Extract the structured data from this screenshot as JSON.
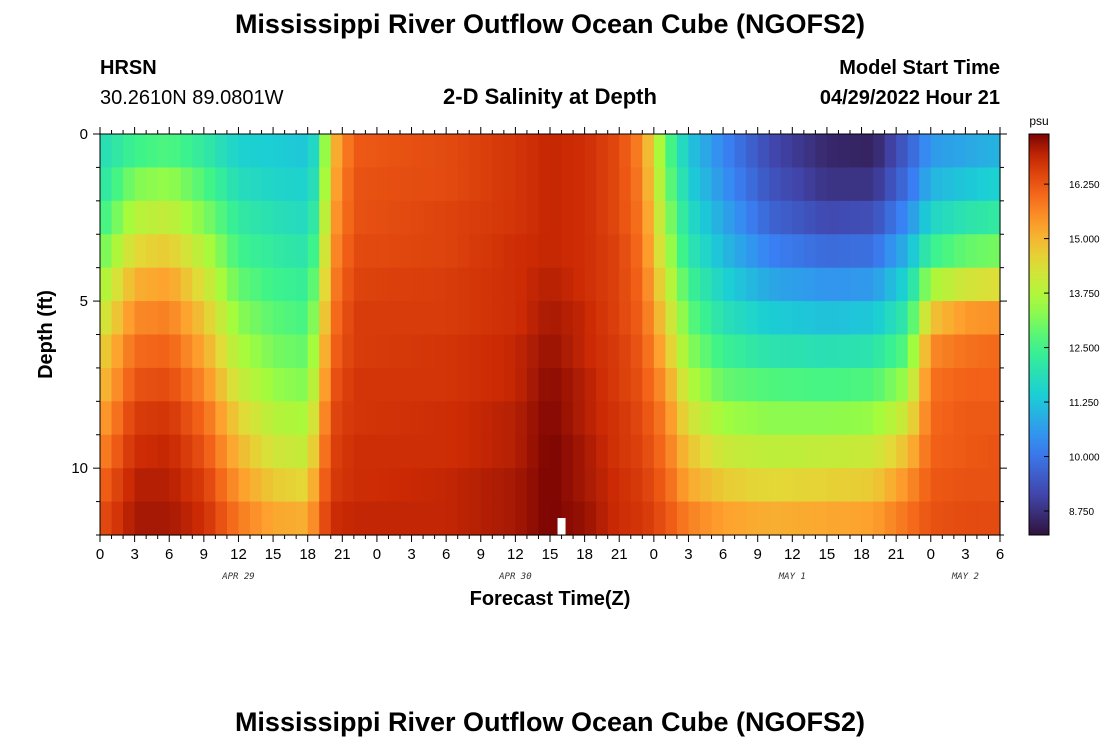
{
  "page": {
    "title": "Mississippi River Outflow Ocean Cube (NGOFS2)",
    "title_repeat": "Mississippi River Outflow Ocean Cube (NGOFS2)",
    "station_name": "HRSN",
    "station_coords": "30.2610N  89.0801W",
    "plot_subtitle": "2-D Salinity at Depth",
    "model_start_label": "Model Start Time",
    "model_start_value": "04/29/2022 Hour 21"
  },
  "chart_data": {
    "type": "heatmap",
    "title": "2-D Salinity at Depth",
    "xlabel": "Forecast Time(Z)",
    "ylabel": "Depth (ft)",
    "x_start_hour": 0,
    "x_end_hour": 78,
    "x_ticks": [
      {
        "hour": 0,
        "label": "0"
      },
      {
        "hour": 3,
        "label": "3"
      },
      {
        "hour": 6,
        "label": "6"
      },
      {
        "hour": 9,
        "label": "9"
      },
      {
        "hour": 12,
        "label": "12"
      },
      {
        "hour": 15,
        "label": "15"
      },
      {
        "hour": 18,
        "label": "18"
      },
      {
        "hour": 21,
        "label": "21"
      },
      {
        "hour": 24,
        "label": "0"
      },
      {
        "hour": 27,
        "label": "3"
      },
      {
        "hour": 30,
        "label": "6"
      },
      {
        "hour": 33,
        "label": "9"
      },
      {
        "hour": 36,
        "label": "12"
      },
      {
        "hour": 39,
        "label": "15"
      },
      {
        "hour": 42,
        "label": "18"
      },
      {
        "hour": 45,
        "label": "21"
      },
      {
        "hour": 48,
        "label": "0"
      },
      {
        "hour": 51,
        "label": "3"
      },
      {
        "hour": 54,
        "label": "6"
      },
      {
        "hour": 57,
        "label": "9"
      },
      {
        "hour": 60,
        "label": "12"
      },
      {
        "hour": 63,
        "label": "15"
      },
      {
        "hour": 66,
        "label": "18"
      },
      {
        "hour": 69,
        "label": "21"
      },
      {
        "hour": 72,
        "label": "0"
      },
      {
        "hour": 75,
        "label": "3"
      },
      {
        "hour": 78,
        "label": "6"
      }
    ],
    "day_labels": [
      {
        "hour": 12,
        "label": "APR 29"
      },
      {
        "hour": 36,
        "label": "APR 30"
      },
      {
        "hour": 60,
        "label": "MAY 1"
      },
      {
        "hour": 75,
        "label": "MAY 2"
      }
    ],
    "y_range": [
      0,
      12
    ],
    "y_ticks": [
      {
        "value": 0,
        "label": "0"
      },
      {
        "value": 5,
        "label": "5"
      },
      {
        "value": 10,
        "label": "10"
      }
    ],
    "depth_levels": 12,
    "colorbar": {
      "unit": "psu",
      "min": 8.2,
      "max": 17.4,
      "ticks": [
        {
          "value": 8.75,
          "label": "8.750"
        },
        {
          "value": 10.0,
          "label": "10.000"
        },
        {
          "value": 11.25,
          "label": "11.250"
        },
        {
          "value": 12.5,
          "label": "12.500"
        },
        {
          "value": 13.75,
          "label": "13.750"
        },
        {
          "value": 15.0,
          "label": "15.000"
        },
        {
          "value": 16.25,
          "label": "16.250"
        }
      ]
    },
    "profile_keyframes_note": "salinity (psu) per depth level from surface (level 0) to bottom (level 11) at selected forecast hours",
    "profile_keyframes": [
      {
        "hour": 0,
        "values": [
          11.8,
          12.0,
          12.4,
          12.9,
          13.5,
          14.0,
          14.5,
          14.8,
          15.2,
          15.6,
          16.0,
          16.3
        ]
      },
      {
        "hour": 3,
        "values": [
          12.5,
          13.2,
          13.8,
          14.5,
          15.1,
          15.6,
          16.0,
          16.3,
          16.6,
          16.8,
          17.0,
          17.1
        ]
      },
      {
        "hour": 6,
        "values": [
          12.7,
          13.4,
          14.0,
          14.7,
          15.3,
          15.7,
          16.1,
          16.4,
          16.7,
          16.9,
          17.0,
          17.1
        ]
      },
      {
        "hour": 9,
        "values": [
          12.2,
          12.7,
          13.2,
          13.8,
          14.3,
          14.8,
          15.2,
          15.6,
          16.0,
          16.3,
          16.6,
          16.8
        ]
      },
      {
        "hour": 12,
        "values": [
          11.5,
          11.8,
          12.2,
          12.5,
          12.9,
          13.3,
          13.7,
          14.1,
          14.6,
          15.0,
          15.4,
          15.8
        ]
      },
      {
        "hour": 15,
        "values": [
          11.4,
          11.6,
          11.9,
          12.2,
          12.5,
          12.8,
          13.1,
          13.4,
          13.8,
          14.2,
          14.7,
          15.2
        ]
      },
      {
        "hour": 18,
        "values": [
          11.3,
          11.5,
          11.7,
          12.0,
          12.3,
          12.6,
          12.9,
          13.2,
          13.6,
          14.0,
          14.5,
          15.1
        ]
      },
      {
        "hour": 19,
        "values": [
          12.0,
          12.2,
          12.6,
          13.0,
          13.4,
          13.8,
          14.2,
          14.5,
          14.9,
          15.3,
          15.7,
          16.0
        ]
      },
      {
        "hour": 20,
        "values": [
          14.8,
          15.0,
          15.2,
          15.4,
          15.6,
          15.8,
          16.0,
          16.2,
          16.4,
          16.5,
          16.6,
          16.8
        ]
      },
      {
        "hour": 22,
        "values": [
          16.2,
          16.3,
          16.3,
          16.4,
          16.5,
          16.6,
          16.6,
          16.7,
          16.7,
          16.8,
          16.8,
          16.9
        ]
      },
      {
        "hour": 30,
        "values": [
          16.4,
          16.4,
          16.5,
          16.5,
          16.6,
          16.6,
          16.7,
          16.7,
          16.8,
          16.8,
          16.9,
          16.9
        ]
      },
      {
        "hour": 36,
        "values": [
          16.7,
          16.7,
          16.7,
          16.8,
          16.8,
          16.8,
          16.9,
          16.9,
          17.0,
          17.0,
          17.1,
          17.1
        ]
      },
      {
        "hour": 39,
        "values": [
          16.9,
          16.9,
          16.9,
          16.9,
          17.0,
          17.1,
          17.2,
          17.3,
          17.35,
          17.4,
          17.4,
          17.4
        ]
      },
      {
        "hour": 42,
        "values": [
          16.8,
          16.8,
          16.8,
          16.8,
          16.8,
          16.9,
          16.9,
          17.0,
          17.0,
          17.1,
          17.1,
          17.2
        ]
      },
      {
        "hour": 45,
        "values": [
          16.4,
          16.4,
          16.4,
          16.5,
          16.5,
          16.5,
          16.6,
          16.6,
          16.7,
          16.7,
          16.8,
          16.8
        ]
      },
      {
        "hour": 47,
        "values": [
          15.6,
          15.7,
          15.8,
          15.9,
          16.0,
          16.1,
          16.2,
          16.3,
          16.4,
          16.5,
          16.6,
          16.7
        ]
      },
      {
        "hour": 49,
        "values": [
          13.0,
          13.2,
          13.5,
          13.8,
          14.2,
          14.6,
          15.0,
          15.4,
          15.7,
          15.9,
          16.1,
          16.3
        ]
      },
      {
        "hour": 51,
        "values": [
          11.3,
          11.5,
          11.8,
          12.1,
          12.5,
          12.9,
          13.3,
          13.8,
          14.3,
          14.8,
          15.2,
          15.7
        ]
      },
      {
        "hour": 54,
        "values": [
          10.3,
          10.5,
          10.8,
          11.1,
          11.5,
          11.9,
          12.4,
          12.9,
          13.5,
          14.1,
          14.7,
          15.3
        ]
      },
      {
        "hour": 58,
        "values": [
          9.2,
          9.4,
          9.7,
          10.2,
          10.8,
          11.4,
          12.0,
          12.7,
          13.3,
          13.9,
          14.5,
          15.1
        ]
      },
      {
        "hour": 63,
        "values": [
          8.6,
          8.8,
          9.2,
          9.8,
          10.5,
          11.2,
          11.9,
          12.6,
          13.3,
          14.0,
          14.6,
          15.2
        ]
      },
      {
        "hour": 67,
        "values": [
          8.5,
          8.8,
          9.3,
          9.9,
          10.6,
          11.3,
          12.0,
          12.7,
          13.4,
          14.1,
          14.7,
          15.3
        ]
      },
      {
        "hour": 70,
        "values": [
          9.6,
          9.9,
          10.4,
          11.0,
          11.6,
          12.2,
          12.8,
          13.5,
          14.2,
          14.9,
          15.5,
          15.9
        ]
      },
      {
        "hour": 72,
        "values": [
          10.6,
          11.0,
          11.6,
          12.4,
          13.6,
          14.8,
          15.6,
          15.9,
          16.0,
          16.1,
          16.2,
          16.3
        ]
      },
      {
        "hour": 75,
        "values": [
          10.8,
          11.3,
          12.0,
          12.9,
          14.2,
          15.4,
          15.9,
          16.1,
          16.2,
          16.2,
          16.3,
          16.4
        ]
      },
      {
        "hour": 78,
        "values": [
          11.0,
          11.5,
          12.2,
          13.1,
          14.4,
          15.5,
          16.0,
          16.1,
          16.2,
          16.3,
          16.3,
          16.4
        ]
      }
    ],
    "current_time_marker_hour": 40
  }
}
